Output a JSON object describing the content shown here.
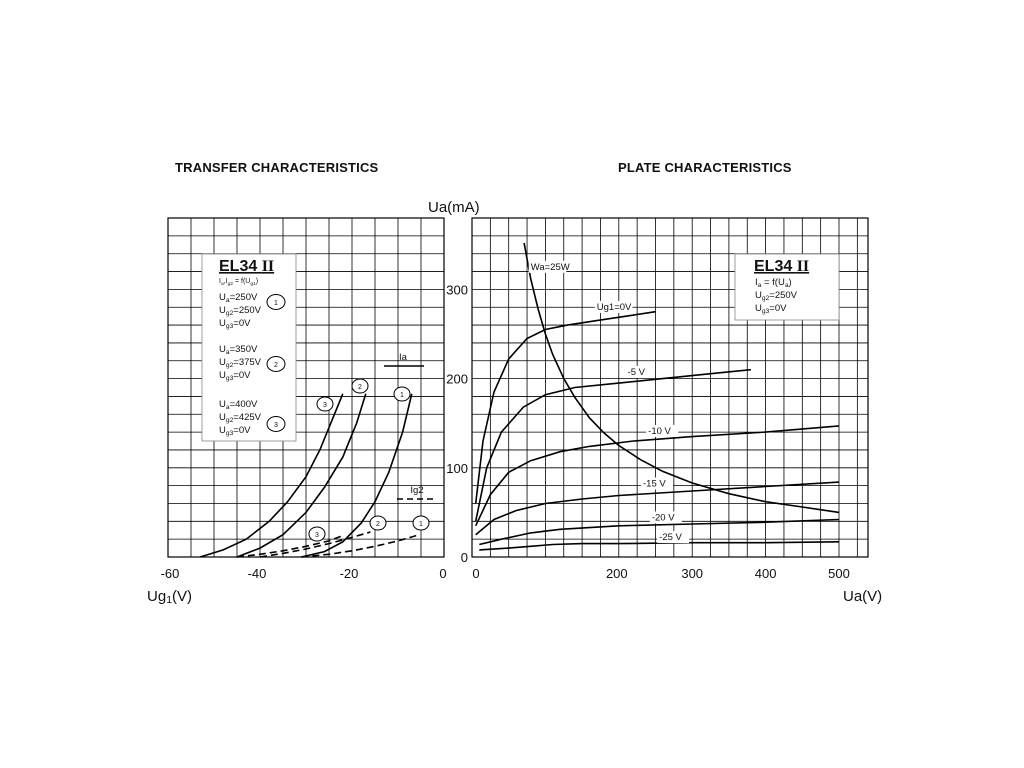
{
  "chart_data": [
    {
      "type": "line",
      "title": "TRANSFER CHARACTERISTICS",
      "xlabel": "Ug1(V)",
      "xlabel_main": "Ug",
      "xlabel_sub": "1",
      "xlabel_unit": "(V)",
      "xlim": [
        -60,
        0
      ],
      "ylim": [
        0,
        370
      ],
      "x_ticks": [
        "-60",
        "-40",
        "-20",
        "0"
      ],
      "grid": true,
      "legend": {
        "tube": "EL34",
        "tube_suffix": "II",
        "relation": "Ia,Ig2 = f(Ug1)",
        "relation_parts": {
          "main": "I",
          "s1": "a",
          "mid": ",I",
          "s2": "g2",
          "eq": " = f(U",
          "s3": "g1",
          "end": ")"
        },
        "conditions": [
          {
            "id": "1",
            "lines": [
              {
                "main": "U",
                "sub": "a",
                "val": "=250V"
              },
              {
                "main": "U",
                "sub": "g2",
                "val": "=250V"
              },
              {
                "main": "U",
                "sub": "g3",
                "val": "=0V"
              }
            ]
          },
          {
            "id": "2",
            "lines": [
              {
                "main": "U",
                "sub": "a",
                "val": "=350V"
              },
              {
                "main": "U",
                "sub": "g2",
                "val": "=375V"
              },
              {
                "main": "U",
                "sub": "g3",
                "val": "=0V"
              }
            ]
          },
          {
            "id": "3",
            "lines": [
              {
                "main": "U",
                "sub": "a",
                "val": "=400V"
              },
              {
                "main": "U",
                "sub": "g2",
                "val": "=425V"
              },
              {
                "main": "U",
                "sub": "g3",
                "val": "=0V"
              }
            ]
          }
        ]
      },
      "annotations": {
        "ia": "Ia",
        "ig2": "Ig2"
      },
      "series": [
        {
          "name": "1",
          "kind": "Ia",
          "style": "solid",
          "x": [
            -31,
            -26,
            -22,
            -18,
            -15,
            -12,
            -9,
            -7
          ],
          "y": [
            0,
            6,
            17,
            38,
            62,
            95,
            140,
            183
          ]
        },
        {
          "name": "2",
          "kind": "Ia",
          "style": "solid",
          "x": [
            -45,
            -40,
            -35,
            -30,
            -26,
            -22,
            -19,
            -17
          ],
          "y": [
            0,
            10,
            25,
            50,
            78,
            112,
            150,
            183
          ]
        },
        {
          "name": "3",
          "kind": "Ia",
          "style": "solid",
          "x": [
            -53,
            -48,
            -43,
            -38,
            -34,
            -30,
            -27,
            -22
          ],
          "y": [
            0,
            8,
            20,
            40,
            62,
            90,
            120,
            183
          ]
        },
        {
          "name": "1",
          "kind": "Ig2",
          "style": "dashed",
          "x": [
            -31,
            -25,
            -20,
            -15,
            -10,
            -6
          ],
          "y": [
            0,
            3,
            7,
            12,
            18,
            24
          ]
        },
        {
          "name": "2",
          "kind": "Ig2",
          "style": "dashed",
          "x": [
            -40,
            -35,
            -30,
            -25,
            -20,
            -16
          ],
          "y": [
            0,
            4,
            9,
            15,
            22,
            28
          ]
        },
        {
          "name": "3",
          "kind": "Ig2",
          "style": "dashed",
          "x": [
            -45,
            -40,
            -35,
            -30,
            -25,
            -22
          ],
          "y": [
            0,
            3,
            7,
            12,
            18,
            24
          ]
        }
      ]
    },
    {
      "type": "line",
      "title": "PLATE CHARACTERISTICS",
      "ylabel": "Ua(mA)",
      "xlabel": "Ua(V)",
      "xlim": [
        0,
        540
      ],
      "ylim": [
        0,
        370
      ],
      "x_ticks": [
        {
          "v": 0,
          "label": "0"
        },
        {
          "v": 200,
          "label": "200"
        },
        {
          "v": 300,
          "label": "300"
        },
        {
          "v": 400,
          "label": "400"
        },
        {
          "v": 500,
          "label": "500"
        }
      ],
      "y_ticks": [
        {
          "v": 0,
          "label": "0"
        },
        {
          "v": 100,
          "label": "100"
        },
        {
          "v": 200,
          "label": "200"
        },
        {
          "v": 300,
          "label": "300"
        }
      ],
      "grid": true,
      "legend": {
        "tube": "EL34",
        "tube_suffix": "II",
        "lines": [
          {
            "main": "I",
            "sub": "a",
            "val": " = f(U",
            "sub2": "a",
            "end": ")"
          },
          {
            "main": "U",
            "sub": "g2",
            "val": "=250V",
            "sub2": "",
            "end": ""
          },
          {
            "main": "U",
            "sub": "g3",
            "val": "=0V",
            "sub2": "",
            "end": ""
          }
        ]
      },
      "series": [
        {
          "name": "Ug1=0V",
          "x": [
            5,
            15,
            30,
            50,
            75,
            100,
            130,
            170,
            210,
            250
          ],
          "y": [
            60,
            130,
            185,
            222,
            245,
            255,
            260,
            265,
            270,
            275
          ]
        },
        {
          "name": "-5 V",
          "x": [
            5,
            20,
            40,
            70,
            100,
            140,
            200,
            260,
            320,
            380
          ],
          "y": [
            40,
            100,
            140,
            168,
            182,
            190,
            195,
            200,
            205,
            210
          ]
        },
        {
          "name": "-10 V",
          "x": [
            5,
            25,
            50,
            80,
            120,
            160,
            220,
            300,
            400,
            500
          ],
          "y": [
            35,
            70,
            95,
            108,
            118,
            124,
            130,
            135,
            140,
            147
          ]
        },
        {
          "name": "-15 V",
          "x": [
            5,
            30,
            60,
            100,
            150,
            200,
            300,
            400,
            500
          ],
          "y": [
            25,
            42,
            52,
            60,
            65,
            69,
            74,
            79,
            84
          ]
        },
        {
          "name": "-20 V",
          "x": [
            10,
            40,
            80,
            120,
            160,
            200,
            300,
            400,
            500
          ],
          "y": [
            14,
            20,
            27,
            31,
            33,
            35,
            37,
            39,
            42
          ]
        },
        {
          "name": "-25 V",
          "x": [
            10,
            50,
            80,
            110,
            150,
            200,
            300,
            400,
            500
          ],
          "y": [
            8,
            10,
            12,
            14,
            15,
            15,
            16,
            16,
            17
          ]
        },
        {
          "name": "Wa=25W",
          "x": [
            71,
            80,
            90,
            100,
            110,
            125,
            140,
            160,
            180,
            200,
            230,
            260,
            300,
            350,
            400,
            450,
            500
          ],
          "y": [
            352,
            312,
            278,
            250,
            227,
            200,
            179,
            156,
            139,
            125,
            109,
            96,
            83,
            71,
            62,
            56,
            50
          ]
        }
      ],
      "labels": [
        {
          "series": "Wa=25W",
          "text": "Wa=25W"
        },
        {
          "series": "Ug1=0V",
          "text": "Ug1=0V"
        },
        {
          "series": "-5 V",
          "text": "-5 V"
        },
        {
          "series": "-10 V",
          "text": "-10 V"
        },
        {
          "series": "-15 V",
          "text": "-15 V"
        },
        {
          "series": "-20 V",
          "text": "-20 V"
        },
        {
          "series": "-25 V",
          "text": "-25 V"
        }
      ]
    }
  ]
}
